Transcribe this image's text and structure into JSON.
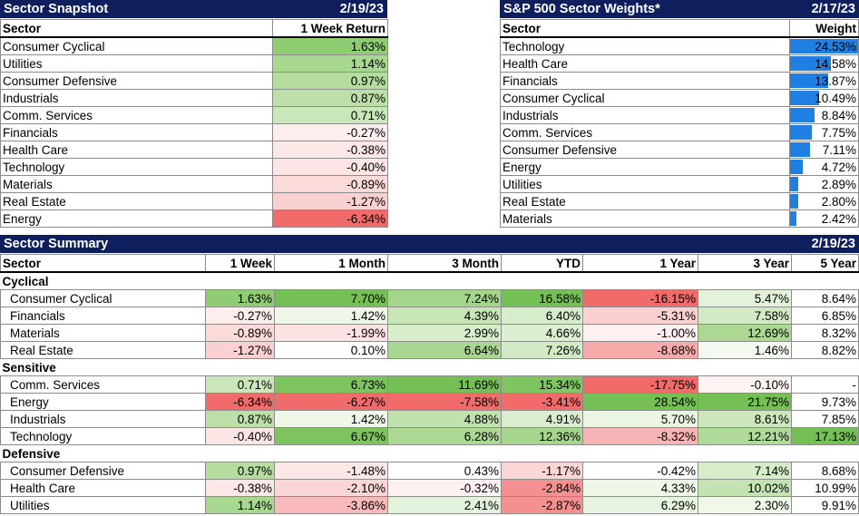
{
  "snapshot": {
    "title": "Sector Snapshot",
    "date": "2/19/23",
    "col_sector": "Sector",
    "col_return": "1 Week Return",
    "rows": [
      {
        "sector": "Consumer Cyclical",
        "ret": "1.63%",
        "color": "#8fcc72"
      },
      {
        "sector": "Utilities",
        "ret": "1.14%",
        "color": "#a8d790"
      },
      {
        "sector": "Consumer Defensive",
        "ret": "0.97%",
        "color": "#b5dd9f"
      },
      {
        "sector": "Industrials",
        "ret": "0.87%",
        "color": "#bde0a8"
      },
      {
        "sector": "Comm. Services",
        "ret": "0.71%",
        "color": "#c9e7b8"
      },
      {
        "sector": "Financials",
        "ret": "-0.27%",
        "color": "#fdeeee"
      },
      {
        "sector": "Health Care",
        "ret": "-0.38%",
        "color": "#fce7e7"
      },
      {
        "sector": "Technology",
        "ret": "-0.40%",
        "color": "#fce5e5"
      },
      {
        "sector": "Materials",
        "ret": "-0.89%",
        "color": "#fbdada"
      },
      {
        "sector": "Real Estate",
        "ret": "-1.27%",
        "color": "#fad0d0"
      },
      {
        "sector": "Energy",
        "ret": "-6.34%",
        "color": "#f26b6b"
      }
    ]
  },
  "weights": {
    "title": "S&P 500 Sector Weights*",
    "date": "2/17/23",
    "col_sector": "Sector",
    "col_weight": "Weight",
    "bar_color": "#1f7fe3",
    "rows": [
      {
        "sector": "Technology",
        "weight": "24.53%",
        "pct": 24.53
      },
      {
        "sector": "Health Care",
        "weight": "14.58%",
        "pct": 14.58
      },
      {
        "sector": "Financials",
        "weight": "13.87%",
        "pct": 13.87
      },
      {
        "sector": "Consumer Cyclical",
        "weight": "10.49%",
        "pct": 10.49
      },
      {
        "sector": "Industrials",
        "weight": "8.84%",
        "pct": 8.84
      },
      {
        "sector": "Comm. Services",
        "weight": "7.75%",
        "pct": 7.75
      },
      {
        "sector": "Consumer Defensive",
        "weight": "7.11%",
        "pct": 7.11
      },
      {
        "sector": "Energy",
        "weight": "4.72%",
        "pct": 4.72
      },
      {
        "sector": "Utilities",
        "weight": "2.89%",
        "pct": 2.89
      },
      {
        "sector": "Real Estate",
        "weight": "2.80%",
        "pct": 2.8
      },
      {
        "sector": "Materials",
        "weight": "2.42%",
        "pct": 2.42
      }
    ]
  },
  "summary": {
    "title": "Sector Summary",
    "date": "2/19/23",
    "headers": [
      "Sector",
      "1 Week",
      "1 Month",
      "3 Month",
      "YTD",
      "1 Year",
      "3 Year",
      "5 Year"
    ],
    "groups": [
      {
        "name": "Cyclical",
        "rows": [
          {
            "sector": "Consumer Cyclical",
            "vals": [
              "1.63%",
              "7.70%",
              "7.24%",
              "16.58%",
              "-16.15%",
              "5.47%",
              "8.64%"
            ],
            "colors": [
              "#8fcc72",
              "#74c054",
              "#a4d58b",
              "#74c054",
              "#f16b6b",
              "#e3f2d9",
              "#ffffff"
            ]
          },
          {
            "sector": "Financials",
            "vals": [
              "-0.27%",
              "1.42%",
              "4.39%",
              "6.40%",
              "-5.31%",
              "7.58%",
              "6.85%"
            ],
            "colors": [
              "#fdeeee",
              "#eef7e8",
              "#c7e6b5",
              "#d6edc9",
              "#fad0d0",
              "#d3ebc5",
              "#ffffff"
            ]
          },
          {
            "sector": "Materials",
            "vals": [
              "-0.89%",
              "-1.99%",
              "2.99%",
              "4.66%",
              "-1.00%",
              "12.69%",
              "8.32%"
            ],
            "colors": [
              "#fbdada",
              "#fce2e2",
              "#d7eecb",
              "#dcefd0",
              "#fdf0f0",
              "#acd894",
              "#ffffff"
            ]
          },
          {
            "sector": "Real Estate",
            "vals": [
              "-1.27%",
              "0.10%",
              "6.64%",
              "7.26%",
              "-8.68%",
              "1.46%",
              "8.82%"
            ],
            "colors": [
              "#fad0d0",
              "#ffffff",
              "#a9d691",
              "#d3ebc5",
              "#f7aaaa",
              "#f4faf0",
              "#ffffff"
            ]
          }
        ]
      },
      {
        "name": "Sensitive",
        "rows": [
          {
            "sector": "Comm. Services",
            "vals": [
              "0.71%",
              "6.73%",
              "11.69%",
              "15.34%",
              "-17.75%",
              "-0.10%",
              "-"
            ],
            "colors": [
              "#c9e7b8",
              "#7dc45f",
              "#74c054",
              "#7fc562",
              "#f16b6b",
              "#fdf3f3",
              "#ffffff"
            ]
          },
          {
            "sector": "Energy",
            "vals": [
              "-6.34%",
              "-6.27%",
              "-7.58%",
              "-3.41%",
              "28.54%",
              "21.75%",
              "9.73%"
            ],
            "colors": [
              "#f26b6b",
              "#f16b6b",
              "#f26b6b",
              "#f26b6b",
              "#74c054",
              "#74c054",
              "#ffffff"
            ]
          },
          {
            "sector": "Industrials",
            "vals": [
              "0.87%",
              "1.42%",
              "4.88%",
              "4.91%",
              "5.70%",
              "8.61%",
              "7.85%"
            ],
            "colors": [
              "#bde0a8",
              "#eef7e8",
              "#c0e2ad",
              "#daeecf",
              "#eaf6e2",
              "#ccE8bb",
              "#ffffff"
            ]
          },
          {
            "sector": "Technology",
            "vals": [
              "-0.40%",
              "6.67%",
              "6.28%",
              "12.36%",
              "-8.32%",
              "12.21%",
              "17.13%"
            ],
            "colors": [
              "#fce5e5",
              "#7dc45f",
              "#acd894",
              "#a6d68d",
              "#f8b4b4",
              "#b0da99",
              "#74c054"
            ]
          }
        ]
      },
      {
        "name": "Defensive",
        "rows": [
          {
            "sector": "Consumer Defensive",
            "vals": [
              "0.97%",
              "-1.48%",
              "0.43%",
              "-1.17%",
              "-0.42%",
              "7.14%",
              "8.68%"
            ],
            "colors": [
              "#b5dd9f",
              "#fce7e7",
              "#ffffff",
              "#fbd6d6",
              "#ffffff",
              "#d7edca",
              "#ffffff"
            ]
          },
          {
            "sector": "Health Care",
            "vals": [
              "-0.38%",
              "-2.10%",
              "-0.32%",
              "-2.84%",
              "4.33%",
              "10.02%",
              "10.99%"
            ],
            "colors": [
              "#fce7e7",
              "#fbd6d6",
              "#fdf1f1",
              "#f49090",
              "#eef7e8",
              "#c3e3b0",
              "#ffffff"
            ]
          },
          {
            "sector": "Utilities",
            "vals": [
              "1.14%",
              "-3.86%",
              "2.41%",
              "-2.87%",
              "6.29%",
              "2.30%",
              "9.91%"
            ],
            "colors": [
              "#a8d790",
              "#f8baba",
              "#e3f2da",
              "#f49090",
              "#e7f4df",
              "#f0f8ea",
              "#ffffff"
            ]
          }
        ]
      }
    ]
  }
}
